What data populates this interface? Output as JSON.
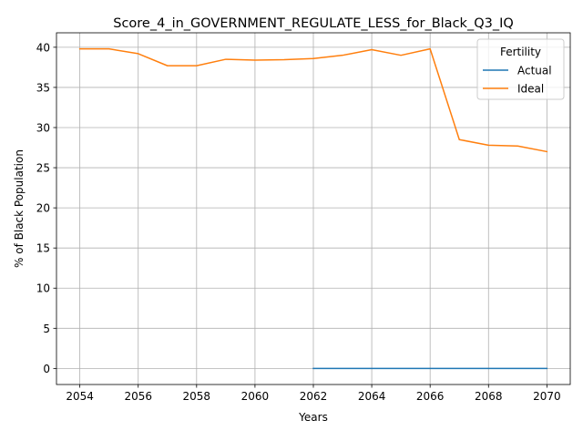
{
  "chart_data": {
    "type": "line",
    "title": "Score_4_in_GOVERNMENT_REGULATE_LESS_for_Black_Q3_IQ",
    "xlabel": "Years",
    "ylabel": "% of Black Population",
    "xlim": [
      2053.2,
      2070.8
    ],
    "ylim": [
      -2.0,
      41.8
    ],
    "xticks": [
      2054,
      2056,
      2058,
      2060,
      2062,
      2064,
      2066,
      2068,
      2070
    ],
    "yticks": [
      0,
      5,
      10,
      15,
      20,
      25,
      30,
      35,
      40
    ],
    "grid": true,
    "legend": {
      "title": "Fertility",
      "placement": "top-right"
    },
    "series": [
      {
        "name": "Actual",
        "color": "#1f77b4",
        "x": [
          2062,
          2063,
          2064,
          2065,
          2066,
          2067,
          2068,
          2069,
          2070
        ],
        "y": [
          0,
          0,
          0,
          0,
          0,
          0,
          0,
          0,
          0
        ]
      },
      {
        "name": "Ideal",
        "color": "#ff7f0e",
        "x": [
          2054,
          2055,
          2056,
          2057,
          2058,
          2059,
          2060,
          2061,
          2062,
          2063,
          2064,
          2065,
          2066,
          2067,
          2068,
          2069,
          2070
        ],
        "y": [
          39.8,
          39.8,
          39.2,
          37.7,
          37.7,
          38.5,
          38.4,
          38.45,
          38.6,
          39.0,
          39.7,
          39.0,
          39.8,
          28.5,
          27.8,
          27.7,
          27.0
        ]
      }
    ]
  }
}
